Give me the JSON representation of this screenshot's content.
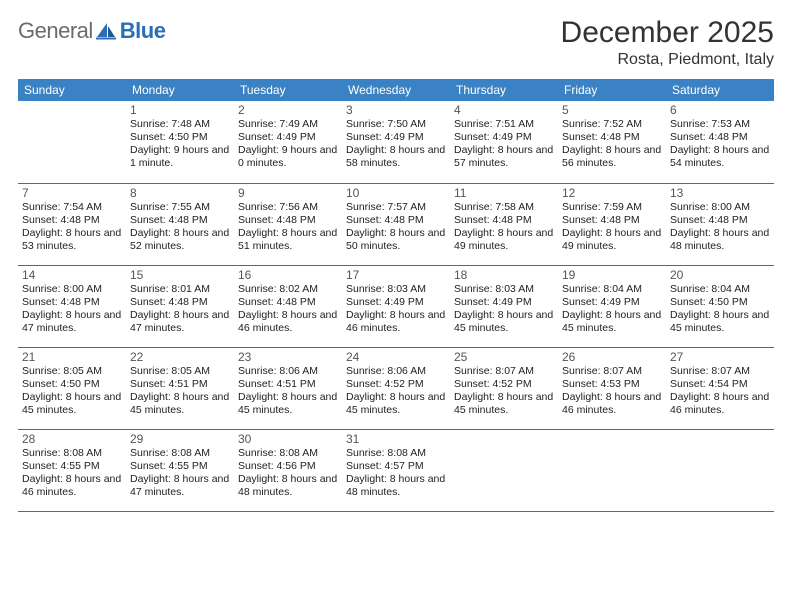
{
  "logo": {
    "gray": "General",
    "blue": "Blue"
  },
  "title": "December 2025",
  "location": "Rosta, Piedmont, Italy",
  "colors": {
    "header_bg": "#3b82c4",
    "header_fg": "#ffffff",
    "row_border": "#3b6fa0",
    "logo_gray": "#6b6b6b",
    "logo_blue": "#2a6fb5"
  },
  "dayNames": [
    "Sunday",
    "Monday",
    "Tuesday",
    "Wednesday",
    "Thursday",
    "Friday",
    "Saturday"
  ],
  "weeks": [
    [
      null,
      {
        "n": "1",
        "sr": "7:48 AM",
        "ss": "4:50 PM",
        "dl": "9 hours and 1 minute."
      },
      {
        "n": "2",
        "sr": "7:49 AM",
        "ss": "4:49 PM",
        "dl": "9 hours and 0 minutes."
      },
      {
        "n": "3",
        "sr": "7:50 AM",
        "ss": "4:49 PM",
        "dl": "8 hours and 58 minutes."
      },
      {
        "n": "4",
        "sr": "7:51 AM",
        "ss": "4:49 PM",
        "dl": "8 hours and 57 minutes."
      },
      {
        "n": "5",
        "sr": "7:52 AM",
        "ss": "4:48 PM",
        "dl": "8 hours and 56 minutes."
      },
      {
        "n": "6",
        "sr": "7:53 AM",
        "ss": "4:48 PM",
        "dl": "8 hours and 54 minutes."
      }
    ],
    [
      {
        "n": "7",
        "sr": "7:54 AM",
        "ss": "4:48 PM",
        "dl": "8 hours and 53 minutes."
      },
      {
        "n": "8",
        "sr": "7:55 AM",
        "ss": "4:48 PM",
        "dl": "8 hours and 52 minutes."
      },
      {
        "n": "9",
        "sr": "7:56 AM",
        "ss": "4:48 PM",
        "dl": "8 hours and 51 minutes."
      },
      {
        "n": "10",
        "sr": "7:57 AM",
        "ss": "4:48 PM",
        "dl": "8 hours and 50 minutes."
      },
      {
        "n": "11",
        "sr": "7:58 AM",
        "ss": "4:48 PM",
        "dl": "8 hours and 49 minutes."
      },
      {
        "n": "12",
        "sr": "7:59 AM",
        "ss": "4:48 PM",
        "dl": "8 hours and 49 minutes."
      },
      {
        "n": "13",
        "sr": "8:00 AM",
        "ss": "4:48 PM",
        "dl": "8 hours and 48 minutes."
      }
    ],
    [
      {
        "n": "14",
        "sr": "8:00 AM",
        "ss": "4:48 PM",
        "dl": "8 hours and 47 minutes."
      },
      {
        "n": "15",
        "sr": "8:01 AM",
        "ss": "4:48 PM",
        "dl": "8 hours and 47 minutes."
      },
      {
        "n": "16",
        "sr": "8:02 AM",
        "ss": "4:48 PM",
        "dl": "8 hours and 46 minutes."
      },
      {
        "n": "17",
        "sr": "8:03 AM",
        "ss": "4:49 PM",
        "dl": "8 hours and 46 minutes."
      },
      {
        "n": "18",
        "sr": "8:03 AM",
        "ss": "4:49 PM",
        "dl": "8 hours and 45 minutes."
      },
      {
        "n": "19",
        "sr": "8:04 AM",
        "ss": "4:49 PM",
        "dl": "8 hours and 45 minutes."
      },
      {
        "n": "20",
        "sr": "8:04 AM",
        "ss": "4:50 PM",
        "dl": "8 hours and 45 minutes."
      }
    ],
    [
      {
        "n": "21",
        "sr": "8:05 AM",
        "ss": "4:50 PM",
        "dl": "8 hours and 45 minutes."
      },
      {
        "n": "22",
        "sr": "8:05 AM",
        "ss": "4:51 PM",
        "dl": "8 hours and 45 minutes."
      },
      {
        "n": "23",
        "sr": "8:06 AM",
        "ss": "4:51 PM",
        "dl": "8 hours and 45 minutes."
      },
      {
        "n": "24",
        "sr": "8:06 AM",
        "ss": "4:52 PM",
        "dl": "8 hours and 45 minutes."
      },
      {
        "n": "25",
        "sr": "8:07 AM",
        "ss": "4:52 PM",
        "dl": "8 hours and 45 minutes."
      },
      {
        "n": "26",
        "sr": "8:07 AM",
        "ss": "4:53 PM",
        "dl": "8 hours and 46 minutes."
      },
      {
        "n": "27",
        "sr": "8:07 AM",
        "ss": "4:54 PM",
        "dl": "8 hours and 46 minutes."
      }
    ],
    [
      {
        "n": "28",
        "sr": "8:08 AM",
        "ss": "4:55 PM",
        "dl": "8 hours and 46 minutes."
      },
      {
        "n": "29",
        "sr": "8:08 AM",
        "ss": "4:55 PM",
        "dl": "8 hours and 47 minutes."
      },
      {
        "n": "30",
        "sr": "8:08 AM",
        "ss": "4:56 PM",
        "dl": "8 hours and 48 minutes."
      },
      {
        "n": "31",
        "sr": "8:08 AM",
        "ss": "4:57 PM",
        "dl": "8 hours and 48 minutes."
      },
      null,
      null,
      null
    ]
  ],
  "labels": {
    "sunrise": "Sunrise:",
    "sunset": "Sunset:",
    "daylight": "Daylight:"
  }
}
